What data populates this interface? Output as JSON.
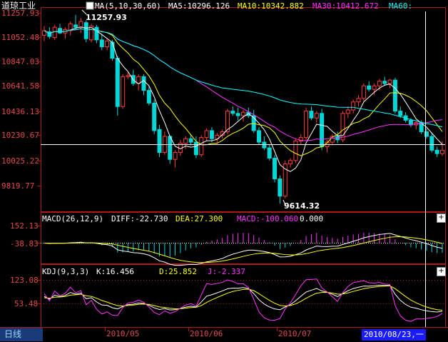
{
  "main": {
    "name": "道琼工业",
    "ma_label": "MA(5,10,30,60)",
    "ma5": "MA5:10296.126",
    "ma10": "MA10:10342.882",
    "ma30": "MA30:10412.672",
    "ma60": "MA60:",
    "y_ticks": [
      "11257.93",
      "11052.48",
      "10847.03",
      "10641.58",
      "10436.13",
      "10230.67",
      "10025.22",
      "9819.77"
    ],
    "high_label": "11257.93",
    "low_label": "9614.32"
  },
  "macd": {
    "label": "MACD(26,12,9)",
    "diff": "DIFF:-22.730",
    "dea": "DEA:27.300",
    "macd": "MACD:-100.060",
    "zero": "0.000",
    "y_ticks": [
      "152.13",
      "-38.83"
    ]
  },
  "kdj": {
    "label": "KDJ(9,3,3)",
    "k": "K:16.456",
    "d": "D:25.852",
    "j": "J:-2.337",
    "y_ticks": [
      "123.08",
      "53.48"
    ]
  },
  "x_ticks": [
    "2010/05",
    "2010/06",
    "2010/07"
  ],
  "period_tab": "日线",
  "cursor_date": "2010/08/23,一",
  "plus_button": "+",
  "colors": {
    "up": "#ff3c3c",
    "down": "#00d8d8",
    "ma5": "#ffffff",
    "ma10": "#ffff00",
    "ma30": "#ff33ff",
    "ma60": "#00ffff",
    "frame": "#b01818"
  },
  "chart_data": {
    "type": "candlestick",
    "y_range": [
      9614.32,
      11257.93
    ],
    "ohlc": [
      [
        11080,
        11160,
        11030,
        11120
      ],
      [
        11110,
        11150,
        11050,
        11070
      ],
      [
        11060,
        11170,
        11040,
        11150
      ],
      [
        11140,
        11180,
        11090,
        11100
      ],
      [
        11100,
        11150,
        11050,
        11130
      ],
      [
        11120,
        11200,
        11080,
        11180
      ],
      [
        11170,
        11257.93,
        11130,
        11150
      ],
      [
        11150,
        11230,
        11100,
        11200
      ],
      [
        11190,
        11210,
        11020,
        11050
      ],
      [
        11040,
        11180,
        11020,
        11160
      ],
      [
        11150,
        11170,
        11010,
        11040
      ],
      [
        11040,
        11090,
        10950,
        10980
      ],
      [
        10980,
        11050,
        10950,
        11030
      ],
      [
        11020,
        11040,
        10860,
        10880
      ],
      [
        10880,
        10900,
        10380,
        10460
      ],
      [
        10460,
        10740,
        10440,
        10720
      ],
      [
        10720,
        10760,
        10700,
        10730
      ],
      [
        10730,
        10780,
        10640,
        10660
      ],
      [
        10660,
        10740,
        10600,
        10720
      ],
      [
        10720,
        10740,
        10560,
        10600
      ],
      [
        10600,
        10640,
        10470,
        10490
      ],
      [
        10490,
        10520,
        10220,
        10250
      ],
      [
        10260,
        10300,
        10020,
        10060
      ],
      [
        10060,
        10240,
        10040,
        10200
      ],
      [
        10200,
        10210,
        9960,
        10000
      ],
      [
        10000,
        10080,
        9930,
        10060
      ],
      [
        10060,
        10170,
        10030,
        10140
      ],
      [
        10140,
        10200,
        10090,
        10180
      ],
      [
        10180,
        10220,
        10120,
        10150
      ],
      [
        10150,
        10200,
        10010,
        10040
      ],
      [
        10040,
        10210,
        10020,
        10190
      ],
      [
        10190,
        10270,
        10160,
        10250
      ],
      [
        10250,
        10280,
        10150,
        10180
      ],
      [
        10180,
        10230,
        10140,
        10210
      ],
      [
        10210,
        10260,
        10180,
        10240
      ],
      [
        10240,
        10440,
        10220,
        10420
      ],
      [
        10420,
        10460,
        10380,
        10400
      ],
      [
        10400,
        10450,
        10340,
        10380
      ],
      [
        10380,
        10430,
        10330,
        10410
      ],
      [
        10410,
        10450,
        10360,
        10380
      ],
      [
        10380,
        10430,
        10230,
        10250
      ],
      [
        10250,
        10280,
        10130,
        10150
      ],
      [
        10150,
        10200,
        10080,
        10100
      ],
      [
        10100,
        10130,
        9990,
        10010
      ],
      [
        10010,
        10040,
        9800,
        9830
      ],
      [
        9830,
        9860,
        9614.32,
        9680
      ],
      [
        9680,
        9990,
        9660,
        9960
      ],
      [
        9960,
        10010,
        9930,
        9990
      ],
      [
        9990,
        10180,
        9970,
        10160
      ],
      [
        10160,
        10220,
        10130,
        10190
      ],
      [
        10190,
        10450,
        10170,
        10420
      ],
      [
        10420,
        10460,
        10340,
        10360
      ],
      [
        10360,
        10420,
        10320,
        10400
      ],
      [
        10400,
        10440,
        10080,
        10110
      ],
      [
        10110,
        10170,
        10060,
        10150
      ],
      [
        10150,
        10220,
        10120,
        10200
      ],
      [
        10200,
        10240,
        10140,
        10170
      ],
      [
        10170,
        10420,
        10150,
        10400
      ],
      [
        10400,
        10460,
        10360,
        10430
      ],
      [
        10430,
        10520,
        10400,
        10500
      ],
      [
        10500,
        10560,
        10460,
        10530
      ],
      [
        10530,
        10660,
        10510,
        10640
      ],
      [
        10640,
        10680,
        10590,
        10610
      ],
      [
        10610,
        10660,
        10560,
        10640
      ],
      [
        10640,
        10700,
        10600,
        10680
      ],
      [
        10680,
        10720,
        10640,
        10660
      ],
      [
        10660,
        10700,
        10620,
        10690
      ],
      [
        10690,
        10710,
        10400,
        10420
      ],
      [
        10420,
        10460,
        10360,
        10380
      ],
      [
        10380,
        10410,
        10320,
        10340
      ],
      [
        10340,
        10360,
        10280,
        10300
      ],
      [
        10300,
        10340,
        10260,
        10320
      ],
      [
        10320,
        10340,
        10220,
        10240
      ],
      [
        10240,
        10270,
        10180,
        10200
      ],
      [
        10200,
        10230,
        10060,
        10080
      ],
      [
        10080,
        10110,
        10020,
        10050
      ],
      [
        10050,
        10160,
        10030,
        10080
      ]
    ],
    "x_tick_labels": [
      "2010/05",
      "2010/06",
      "2010/07"
    ]
  }
}
